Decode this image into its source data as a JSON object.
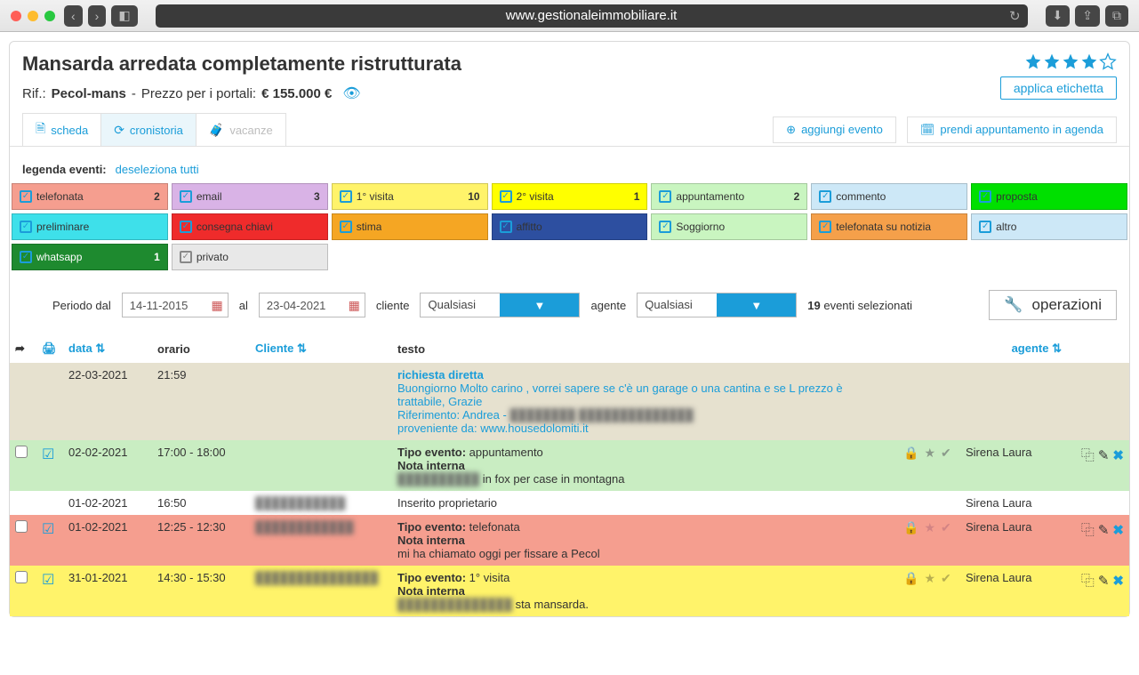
{
  "browser": {
    "url": "www.gestionaleimmobiliare.it"
  },
  "header": {
    "title": "Mansarda arredata completamente ristrutturata",
    "ref_label": "Rif.:",
    "ref_value": "Pecol-mans",
    "price_label": "Prezzo per i portali:",
    "price_value": "€ 155.000 €",
    "rating": 4,
    "apply_label": "applica etichetta"
  },
  "tabs": {
    "scheda": "scheda",
    "cronistoria": "cronistoria",
    "vacanze": "vacanze"
  },
  "top_actions": {
    "add_event": "aggiungi evento",
    "book": "prendi appuntamento in agenda"
  },
  "legend": {
    "label": "legenda eventi:",
    "deselect": "deseleziona tutti",
    "items": [
      {
        "label": "telefonata",
        "count": "2",
        "bg": "#f59e8f"
      },
      {
        "label": "email",
        "count": "3",
        "bg": "#d9b3e6"
      },
      {
        "label": "1° visita",
        "count": "10",
        "bg": "#fff36a"
      },
      {
        "label": "2° visita",
        "count": "1",
        "bg": "#ffff00"
      },
      {
        "label": "appuntamento",
        "count": "2",
        "bg": "#c9f5c0"
      },
      {
        "label": "commento",
        "count": "",
        "bg": "#cde8f7"
      },
      {
        "label": "proposta",
        "count": "",
        "bg": "#00e000"
      },
      {
        "label": "preliminare",
        "count": "",
        "bg": "#3ee0ea"
      },
      {
        "label": "consegna chiavi",
        "count": "",
        "bg": "#ef2b2b"
      },
      {
        "label": "stima",
        "count": "",
        "bg": "#f5a623"
      },
      {
        "label": "affitto",
        "count": "",
        "bg": "#2d4fa0"
      },
      {
        "label": "Soggiorno",
        "count": "",
        "bg": "#c9f5c0"
      },
      {
        "label": "telefonata su notizia",
        "count": "",
        "bg": "#f5a04a"
      },
      {
        "label": "altro",
        "count": "",
        "bg": "#cde8f7"
      },
      {
        "label": "whatsapp",
        "count": "1",
        "bg": "#1e8a2f",
        "fg": "#ffffff"
      },
      {
        "label": "privato",
        "count": "",
        "bg": "#e8e8e8",
        "muted": true
      }
    ]
  },
  "filters": {
    "period_label": "Periodo dal",
    "date_from": "14-11-2015",
    "to_label": "al",
    "date_to": "23-04-2021",
    "client_label": "cliente",
    "client_value": "Qualsiasi",
    "agent_label": "agente",
    "agent_value": "Qualsiasi",
    "selected_count": "19",
    "selected_suffix": "eventi selezionati",
    "ops_label": "operazioni"
  },
  "columns": {
    "data": "data",
    "orario": "orario",
    "cliente": "Cliente",
    "testo": "testo",
    "agente": "agente"
  },
  "rows": [
    {
      "bg": "row-beige",
      "check": false,
      "print": false,
      "date": "22-03-2021",
      "time": "21:59",
      "client": "",
      "title": "richiesta diretta",
      "body_lines": [
        "Buongiorno Molto carino , vorrei sapere se c'è un garage o una cantina e se L prezzo è trattabile, Grazie",
        "Riferimento: Andrea - ████████   ██████████████",
        "proveniente da: www.housedolomiti.it"
      ],
      "agent": "",
      "actions": false
    },
    {
      "bg": "row-green",
      "check": true,
      "print": true,
      "date": "02-02-2021",
      "time": "17:00 - 18:00",
      "client": "",
      "tipo_label": "Tipo evento:",
      "tipo": "appuntamento",
      "nota_label": "Nota interna",
      "nota": "██████████ in fox per case in montagna",
      "icon_tone": "",
      "agent": "Sirena Laura",
      "actions": true
    },
    {
      "bg": "row-plain",
      "check": false,
      "print": false,
      "date": "01-02-2021",
      "time": "16:50",
      "client": "███████████",
      "plain_text": "Inserito proprietario",
      "agent": "Sirena Laura",
      "actions": false
    },
    {
      "bg": "row-red",
      "check": true,
      "print": true,
      "date": "01-02-2021",
      "time": "12:25 - 12:30",
      "client": "████████████",
      "tipo_label": "Tipo evento:",
      "tipo": "telefonata",
      "nota_label": "Nota interna",
      "nota": "mi ha chiamato oggi per fissare a Pecol",
      "icon_tone": "red",
      "agent": "Sirena Laura",
      "actions": true
    },
    {
      "bg": "row-yellow",
      "check": true,
      "print": true,
      "date": "31-01-2021",
      "time": "14:30 - 15:30",
      "client": "███████████████",
      "tipo_label": "Tipo evento:",
      "tipo": "1° visita",
      "nota_label": "Nota interna",
      "nota": "██████████████ sta mansarda.",
      "icon_tone": "yel",
      "agent": "Sirena Laura",
      "actions": true
    }
  ]
}
